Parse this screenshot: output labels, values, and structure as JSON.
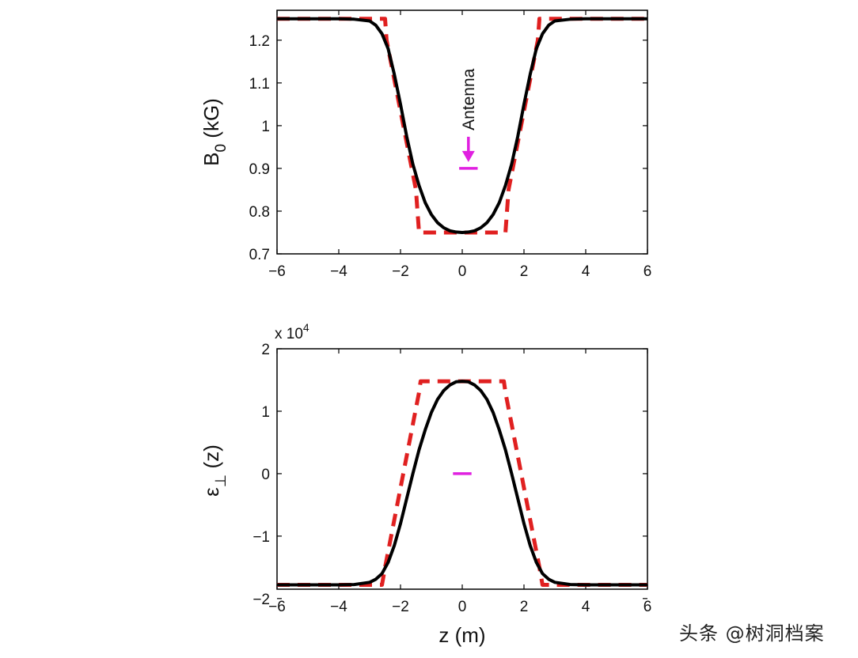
{
  "watermark": "头条 @树洞档案",
  "chart_data": [
    {
      "type": "line",
      "ylabel_main": "B",
      "ylabel_sub": "0",
      "ylabel_unit": " (kG)",
      "xlim": [
        -6,
        6
      ],
      "ylim": [
        0.7,
        1.27
      ],
      "xticks": [
        -6,
        -4,
        -2,
        0,
        2,
        4,
        6
      ],
      "xtick_labels": [
        "−6",
        "−4",
        "−2",
        "0",
        "2",
        "4",
        "6"
      ],
      "yticks": [
        0.7,
        0.8,
        0.9,
        1.0,
        1.1,
        1.2
      ],
      "ytick_labels": [
        "0.7",
        "0.8",
        "0.9",
        "1",
        "1.1",
        "1.2"
      ],
      "grid": false,
      "annotation": {
        "text": "Antenna",
        "x": 0.2,
        "y": 0.9,
        "color": "#e020e0",
        "marker_halfwidth": 0.3
      },
      "series": [
        {
          "style": "solid",
          "color": "#000000",
          "points": [
            [
              -6,
              1.25
            ],
            [
              -5,
              1.25
            ],
            [
              -4,
              1.25
            ],
            [
              -3.5,
              1.249
            ],
            [
              -3,
              1.245
            ],
            [
              -2.8,
              1.235
            ],
            [
              -2.6,
              1.215
            ],
            [
              -2.4,
              1.18
            ],
            [
              -2.2,
              1.12
            ],
            [
              -2.0,
              1.05
            ],
            [
              -1.8,
              0.975
            ],
            [
              -1.6,
              0.91
            ],
            [
              -1.4,
              0.86
            ],
            [
              -1.2,
              0.82
            ],
            [
              -1.0,
              0.792
            ],
            [
              -0.8,
              0.773
            ],
            [
              -0.6,
              0.761
            ],
            [
              -0.4,
              0.754
            ],
            [
              -0.2,
              0.751
            ],
            [
              0,
              0.75
            ],
            [
              0.2,
              0.751
            ],
            [
              0.4,
              0.754
            ],
            [
              0.6,
              0.761
            ],
            [
              0.8,
              0.773
            ],
            [
              1.0,
              0.792
            ],
            [
              1.2,
              0.82
            ],
            [
              1.4,
              0.86
            ],
            [
              1.6,
              0.91
            ],
            [
              1.8,
              0.975
            ],
            [
              2.0,
              1.05
            ],
            [
              2.2,
              1.12
            ],
            [
              2.4,
              1.18
            ],
            [
              2.6,
              1.215
            ],
            [
              2.8,
              1.235
            ],
            [
              3,
              1.245
            ],
            [
              3.5,
              1.249
            ],
            [
              4,
              1.25
            ],
            [
              5,
              1.25
            ],
            [
              6,
              1.25
            ]
          ]
        },
        {
          "style": "dashed",
          "color": "#e02020",
          "points": [
            [
              -6,
              1.25
            ],
            [
              -2.5,
              1.25
            ],
            [
              -2.45,
              1.2
            ],
            [
              -1.5,
              0.85
            ],
            [
              -1.4,
              0.75
            ],
            [
              1.4,
              0.75
            ],
            [
              1.5,
              0.85
            ],
            [
              2.45,
              1.2
            ],
            [
              2.5,
              1.25
            ],
            [
              6,
              1.25
            ]
          ]
        }
      ]
    },
    {
      "type": "line",
      "ylabel_main": "ε",
      "ylabel_sub": "⊥",
      "ylabel_unit": " (z)",
      "xlabel": "z (m)",
      "multiplier_prefix": "x 10",
      "multiplier_exp": "4",
      "xlim": [
        -6,
        6
      ],
      "ylim": [
        -1.85,
        2.0
      ],
      "xticks": [
        -6,
        -4,
        -2,
        0,
        2,
        4,
        6
      ],
      "xtick_labels": [
        "−6",
        "−4",
        "−2",
        "0",
        "2",
        "4",
        "6"
      ],
      "yticks": [
        -2,
        -1,
        0,
        1,
        2
      ],
      "ytick_labels": [
        "−2",
        "−1",
        "0",
        "1",
        "2"
      ],
      "grid": false,
      "annotation": {
        "x": 0.0,
        "y": 0.0,
        "color": "#e020e0",
        "marker_halfwidth": 0.3
      },
      "series": [
        {
          "style": "solid",
          "color": "#000000",
          "points": [
            [
              -6,
              -1.78
            ],
            [
              -4,
              -1.78
            ],
            [
              -3.5,
              -1.775
            ],
            [
              -3,
              -1.74
            ],
            [
              -2.8,
              -1.69
            ],
            [
              -2.6,
              -1.6
            ],
            [
              -2.4,
              -1.42
            ],
            [
              -2.2,
              -1.15
            ],
            [
              -2.0,
              -0.8
            ],
            [
              -1.8,
              -0.4
            ],
            [
              -1.6,
              0.0
            ],
            [
              -1.4,
              0.38
            ],
            [
              -1.2,
              0.7
            ],
            [
              -1.0,
              0.98
            ],
            [
              -0.8,
              1.19
            ],
            [
              -0.6,
              1.33
            ],
            [
              -0.4,
              1.42
            ],
            [
              -0.2,
              1.47
            ],
            [
              0,
              1.48
            ],
            [
              0.2,
              1.47
            ],
            [
              0.4,
              1.42
            ],
            [
              0.6,
              1.33
            ],
            [
              0.8,
              1.19
            ],
            [
              1.0,
              0.98
            ],
            [
              1.2,
              0.7
            ],
            [
              1.4,
              0.38
            ],
            [
              1.6,
              0.0
            ],
            [
              1.8,
              -0.4
            ],
            [
              2.0,
              -0.8
            ],
            [
              2.2,
              -1.15
            ],
            [
              2.4,
              -1.42
            ],
            [
              2.6,
              -1.6
            ],
            [
              2.8,
              -1.69
            ],
            [
              3,
              -1.74
            ],
            [
              3.5,
              -1.775
            ],
            [
              4,
              -1.78
            ],
            [
              6,
              -1.78
            ]
          ]
        },
        {
          "style": "dashed",
          "color": "#e02020",
          "points": [
            [
              -6,
              -1.78
            ],
            [
              -2.6,
              -1.78
            ],
            [
              -2.5,
              -1.5
            ],
            [
              -1.4,
              1.3
            ],
            [
              -1.35,
              1.48
            ],
            [
              1.35,
              1.48
            ],
            [
              1.4,
              1.3
            ],
            [
              2.5,
              -1.5
            ],
            [
              2.6,
              -1.78
            ],
            [
              6,
              -1.78
            ]
          ]
        }
      ]
    }
  ]
}
